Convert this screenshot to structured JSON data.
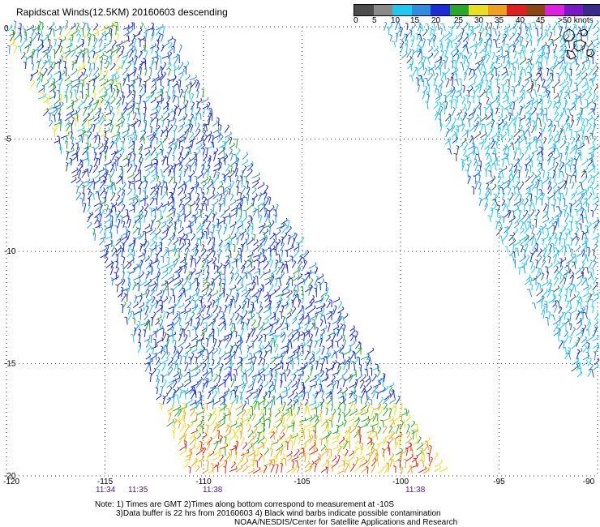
{
  "title": "Rapidscat Winds(12.5KM) 20160603 descending",
  "legend": {
    "labels": [
      "0",
      "5",
      "10",
      "15",
      "20",
      "25",
      "30",
      "35",
      "40",
      "45",
      ">50 knots"
    ],
    "colors": [
      "#4d4d4d",
      "#8a8a8a",
      "#1fc8f0",
      "#2f8de0",
      "#1a2bd8",
      "#28a828",
      "#e8e020",
      "#f0a020",
      "#e02020",
      "#8b4513",
      "#e020e0",
      "#7a18c8",
      "#3a2a8a"
    ]
  },
  "map": {
    "lon_ticks": [
      "-120",
      "-115",
      "-110",
      "-105",
      "-100",
      "-95",
      "-90"
    ],
    "lat_ticks": [
      "0",
      "-5",
      "-10",
      "-15",
      "-20"
    ],
    "lon_range": [
      -120,
      -90
    ],
    "lat_range": [
      -20,
      0
    ],
    "grid": "dotted"
  },
  "times": [
    "11:34",
    "11:35",
    "11:38",
    "11:38"
  ],
  "notes": [
    "Note: 1) Times are GMT 2)Times along bottom correspond to measurement at -10S",
    "3)Data buffer is 22 hrs from 20160603 4) Black wind barbs indicate possible contamination",
    "NOAA/NESDIS/Center for Satellite Applications and Research"
  ]
}
